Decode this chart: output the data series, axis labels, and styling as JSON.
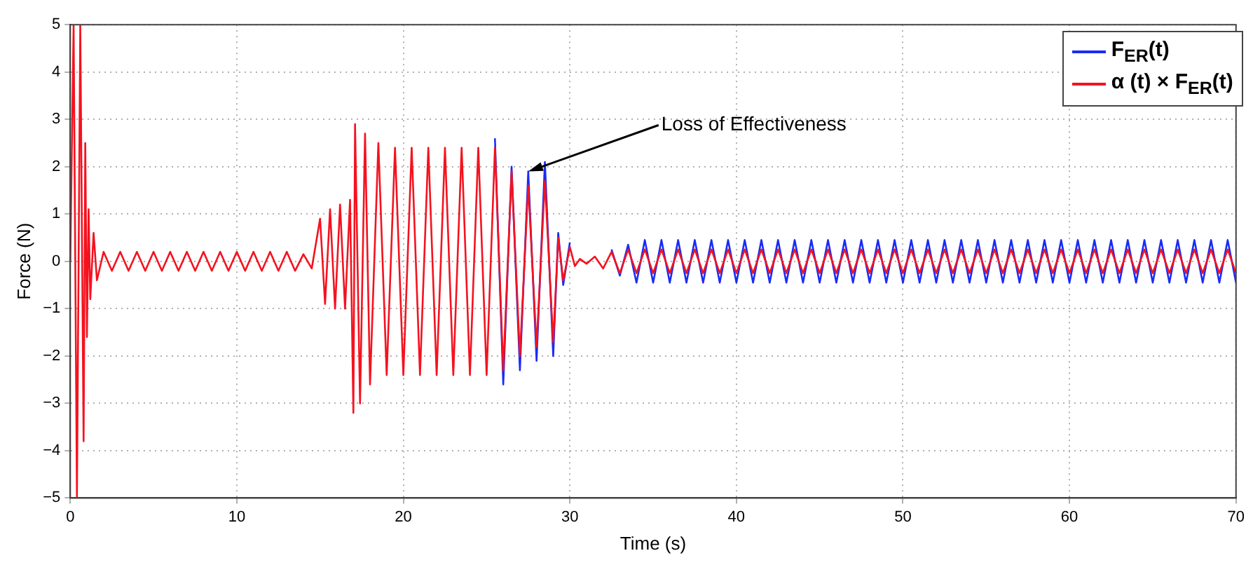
{
  "chart_data": {
    "type": "line",
    "xlabel": "Time (s)",
    "ylabel": "Force (N)",
    "x": [
      0,
      0.2,
      0.4,
      0.6,
      0.8,
      0.9,
      1,
      1.1,
      1.2,
      1.4,
      1.6,
      2,
      2.5,
      3,
      3.5,
      4,
      4.5,
      5,
      5.5,
      6,
      6.5,
      7,
      7.5,
      8,
      8.5,
      9,
      9.5,
      10,
      10.5,
      11,
      11.5,
      12,
      12.5,
      13,
      13.5,
      14,
      14.5,
      15,
      15.3,
      15.6,
      15.9,
      16.2,
      16.5,
      16.8,
      17,
      17.1,
      17.4,
      17.7,
      18,
      18.5,
      19,
      19.5,
      20,
      20.5,
      21,
      21.5,
      22,
      22.5,
      23,
      23.5,
      24,
      24.5,
      25,
      25.5,
      26,
      26.5,
      27,
      27.5,
      28,
      28.5,
      29,
      29.3,
      29.6,
      30,
      30.3,
      30.6,
      31,
      31.5,
      32,
      32.5,
      33,
      33.5,
      34,
      34.5,
      35,
      35.5,
      36,
      36.5,
      37,
      37.5,
      38,
      38.5,
      39,
      39.5,
      40,
      40.5,
      41,
      41.5,
      42,
      42.5,
      43,
      43.5,
      44,
      44.5,
      45,
      45.5,
      46,
      46.5,
      47,
      47.5,
      48,
      48.5,
      49,
      49.5,
      50,
      50.5,
      51,
      51.5,
      52,
      52.5,
      53,
      53.5,
      54,
      54.5,
      55,
      55.5,
      56,
      56.5,
      57,
      57.5,
      58,
      58.5,
      59,
      59.5,
      60,
      60.5,
      61,
      61.5,
      62,
      62.5,
      63,
      63.5,
      64,
      64.5,
      65,
      65.5,
      66,
      66.5,
      67,
      67.5,
      68,
      68.5,
      69,
      69.5,
      70
    ],
    "series": [
      {
        "name": "F$_{ER}$(t)",
        "color": "#1a2cf5",
        "values": [
          null,
          null,
          null,
          null,
          null,
          null,
          null,
          null,
          null,
          null,
          null,
          null,
          null,
          null,
          null,
          null,
          null,
          null,
          null,
          null,
          null,
          null,
          null,
          null,
          null,
          null,
          null,
          null,
          null,
          null,
          null,
          null,
          null,
          null,
          null,
          null,
          null,
          null,
          null,
          null,
          null,
          null,
          null,
          null,
          null,
          null,
          null,
          null,
          null,
          null,
          null,
          null,
          null,
          null,
          null,
          null,
          null,
          null,
          null,
          null,
          null,
          null,
          null,
          2.6,
          -2.6,
          2,
          -2.3,
          1.9,
          -2.1,
          2.1,
          -2,
          0.6,
          -0.5,
          0.4,
          null,
          null,
          null,
          null,
          null,
          0.25,
          -0.3,
          0.35,
          -0.45,
          0.45,
          -0.45,
          0.45,
          -0.45,
          0.45,
          -0.45,
          0.45,
          -0.45,
          0.45,
          -0.45,
          0.45,
          -0.45,
          0.45,
          -0.45,
          0.45,
          -0.45,
          0.45,
          -0.45,
          0.45,
          -0.45,
          0.45,
          -0.45,
          0.45,
          -0.45,
          0.45,
          -0.45,
          0.45,
          -0.45,
          0.45,
          -0.45,
          0.45,
          -0.45,
          0.45,
          -0.45,
          0.45,
          -0.45,
          0.45,
          -0.45,
          0.45,
          -0.45,
          0.45,
          -0.45,
          0.45,
          -0.45,
          0.45,
          -0.45,
          0.45,
          -0.45,
          0.45,
          -0.45,
          0.45,
          -0.45,
          0.45,
          -0.45,
          0.45,
          -0.45,
          0.45,
          -0.45,
          0.45,
          -0.45,
          0.45,
          -0.45,
          0.45,
          -0.45,
          0.45,
          -0.45,
          0.45,
          -0.45,
          0.45,
          -0.45,
          0.45,
          -0.45
        ]
      },
      {
        "name": "α (t) × F$_{ER}$(t)",
        "color": "#f5121f",
        "values": [
          0,
          5,
          -5,
          5,
          -3.8,
          2.5,
          -1.6,
          1.1,
          -0.8,
          0.6,
          -0.4,
          0.2,
          -0.2,
          0.2,
          -0.2,
          0.2,
          -0.2,
          0.2,
          -0.2,
          0.2,
          -0.2,
          0.2,
          -0.2,
          0.2,
          -0.2,
          0.2,
          -0.2,
          0.2,
          -0.2,
          0.2,
          -0.2,
          0.2,
          -0.2,
          0.2,
          -0.2,
          0.15,
          -0.15,
          0.9,
          -0.9,
          1.1,
          -1,
          1.2,
          -1,
          1.3,
          -3.2,
          2.9,
          -3,
          2.7,
          -2.6,
          2.5,
          -2.4,
          2.4,
          -2.4,
          2.4,
          -2.4,
          2.4,
          -2.4,
          2.4,
          -2.4,
          2.4,
          -2.4,
          2.4,
          -2.4,
          2.4,
          -2.3,
          1.9,
          -2,
          1.6,
          -1.8,
          1.7,
          -1.7,
          0.5,
          -0.4,
          0.3,
          -0.1,
          0.05,
          -0.05,
          0.1,
          -0.15,
          0.2,
          -0.25,
          0.25,
          -0.25,
          0.25,
          -0.25,
          0.25,
          -0.25,
          0.25,
          -0.25,
          0.25,
          -0.25,
          0.25,
          -0.25,
          0.25,
          -0.25,
          0.25,
          -0.25,
          0.25,
          -0.25,
          0.25,
          -0.25,
          0.25,
          -0.25,
          0.25,
          -0.25,
          0.25,
          -0.25,
          0.25,
          -0.25,
          0.25,
          -0.25,
          0.25,
          -0.25,
          0.25,
          -0.25,
          0.25,
          -0.25,
          0.25,
          -0.25,
          0.25,
          -0.25,
          0.25,
          -0.25,
          0.25,
          -0.25,
          0.25,
          -0.25,
          0.25,
          -0.25,
          0.25,
          -0.25,
          0.25,
          -0.25,
          0.25,
          -0.25,
          0.25,
          -0.25,
          0.25,
          -0.25,
          0.25,
          -0.25,
          0.25,
          -0.25,
          0.25,
          -0.25,
          0.25,
          -0.25,
          0.25,
          -0.25,
          0.25,
          -0.25,
          0.25,
          -0.25,
          0.25,
          -0.25
        ]
      }
    ],
    "xlim": [
      0,
      70
    ],
    "xticks": [
      0,
      10,
      20,
      30,
      40,
      50,
      60,
      70
    ],
    "ylim": [
      -5,
      5
    ],
    "yticks": [
      -5,
      -4,
      -3,
      -2,
      -1,
      0,
      1,
      2,
      3,
      4,
      5
    ],
    "annotations": [
      {
        "text": "Loss of Effectiveness",
        "x": 27.5,
        "y": 1.9
      }
    ],
    "grid": true,
    "legend": "top right",
    "marker": "none",
    "line_style": "solid"
  }
}
